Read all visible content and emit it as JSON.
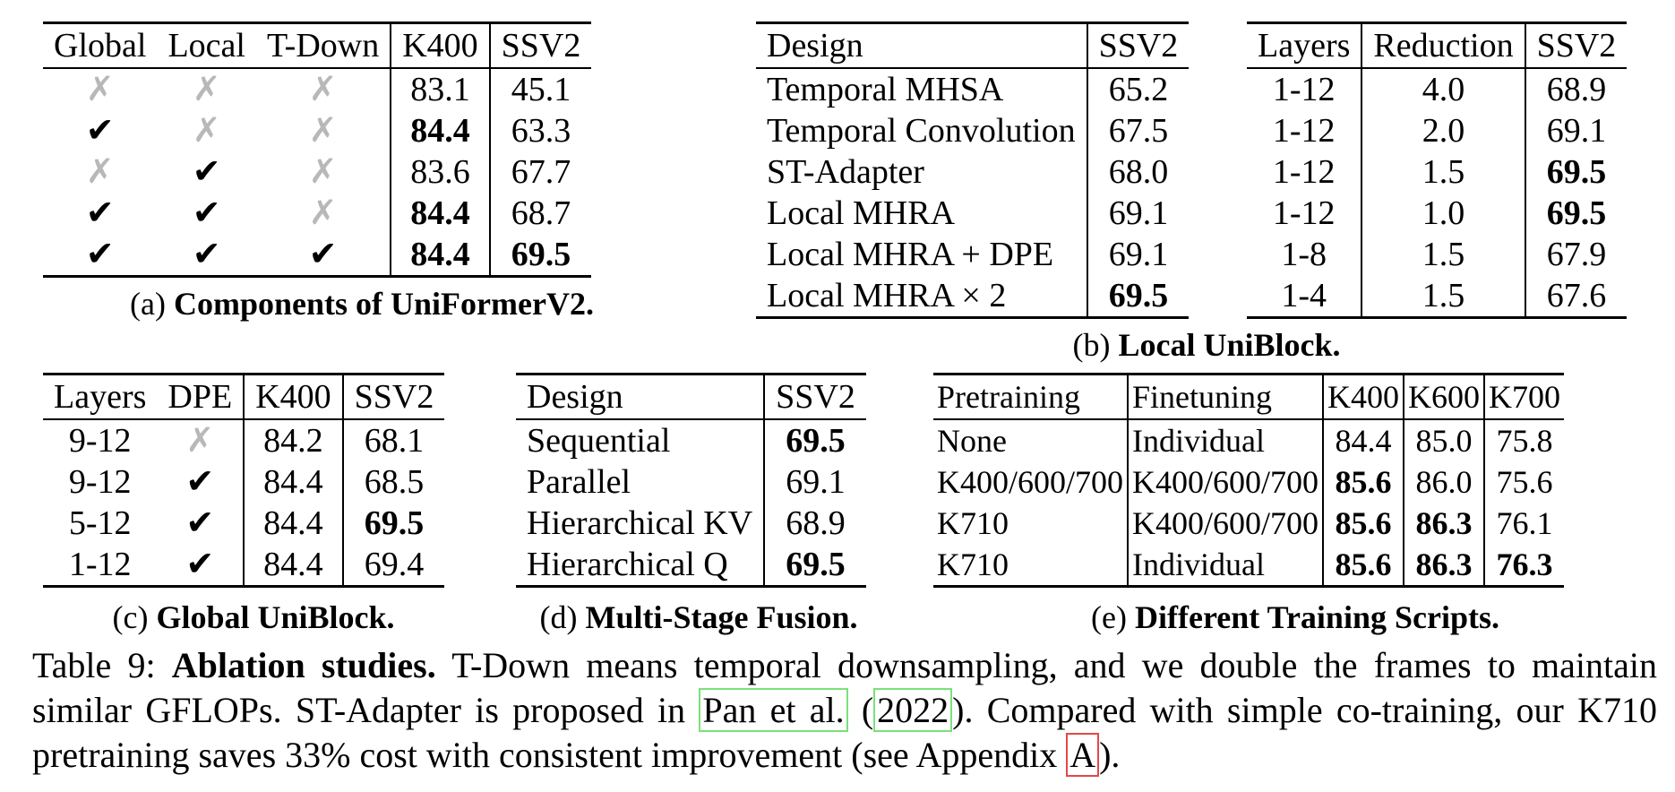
{
  "panel_a": {
    "headers": [
      "Global",
      "Local",
      "T-Down",
      "K400",
      "SSV2"
    ],
    "rows": [
      {
        "global": "✗",
        "local": "✗",
        "tdown": "✗",
        "k400": "83.1",
        "ssv2": "45.1"
      },
      {
        "global": "✔",
        "local": "✗",
        "tdown": "✗",
        "k400": "84.4",
        "ssv2": "63.3"
      },
      {
        "global": "✗",
        "local": "✔",
        "tdown": "✗",
        "k400": "83.6",
        "ssv2": "67.7"
      },
      {
        "global": "✔",
        "local": "✔",
        "tdown": "✗",
        "k400": "84.4",
        "ssv2": "68.7"
      },
      {
        "global": "✔",
        "local": "✔",
        "tdown": "✔",
        "k400": "84.4",
        "ssv2": "69.5"
      }
    ],
    "caption_prefix": "(a) ",
    "caption_bold": "Components of UniFormerV2."
  },
  "panel_b1": {
    "headers": [
      "Design",
      "SSV2"
    ],
    "rows": [
      {
        "design": "Temporal MHSA",
        "ssv2": "65.2"
      },
      {
        "design": "Temporal Convolution",
        "ssv2": "67.5"
      },
      {
        "design": "ST-Adapter",
        "ssv2": "68.0"
      },
      {
        "design": "Local MHRA",
        "ssv2": "69.1"
      },
      {
        "design": "Local MHRA + DPE",
        "ssv2": "69.1"
      },
      {
        "design": "Local MHRA × 2",
        "ssv2": "69.5"
      }
    ]
  },
  "panel_b2": {
    "headers": [
      "Layers",
      "Reduction",
      "SSV2"
    ],
    "rows": [
      {
        "layers": "1-12",
        "reduction": "4.0",
        "ssv2": "68.9"
      },
      {
        "layers": "1-12",
        "reduction": "2.0",
        "ssv2": "69.1"
      },
      {
        "layers": "1-12",
        "reduction": "1.5",
        "ssv2": "69.5"
      },
      {
        "layers": "1-12",
        "reduction": "1.0",
        "ssv2": "69.5"
      },
      {
        "layers": "1-8",
        "reduction": "1.5",
        "ssv2": "67.9"
      },
      {
        "layers": "1-4",
        "reduction": "1.5",
        "ssv2": "67.6"
      }
    ]
  },
  "panel_b_caption_prefix": "(b) ",
  "panel_b_caption_bold": "Local UniBlock.",
  "panel_c": {
    "headers": [
      "Layers",
      "DPE",
      "K400",
      "SSV2"
    ],
    "rows": [
      {
        "layers": "9-12",
        "dpe": "✗",
        "k400": "84.2",
        "ssv2": "68.1"
      },
      {
        "layers": "9-12",
        "dpe": "✔",
        "k400": "84.4",
        "ssv2": "68.5"
      },
      {
        "layers": "5-12",
        "dpe": "✔",
        "k400": "84.4",
        "ssv2": "69.5"
      },
      {
        "layers": "1-12",
        "dpe": "✔",
        "k400": "84.4",
        "ssv2": "69.4"
      }
    ],
    "caption_prefix": "(c) ",
    "caption_bold": "Global UniBlock."
  },
  "panel_d": {
    "headers": [
      "Design",
      "SSV2"
    ],
    "rows": [
      {
        "design": "Sequential",
        "ssv2": "69.5"
      },
      {
        "design": "Parallel",
        "ssv2": "69.1"
      },
      {
        "design": "Hierarchical KV",
        "ssv2": "68.9"
      },
      {
        "design": "Hierarchical Q",
        "ssv2": "69.5"
      }
    ],
    "caption_prefix": "(d) ",
    "caption_bold": "Multi-Stage Fusion."
  },
  "panel_e": {
    "headers": [
      "Pretraining",
      "Finetuning",
      "K400",
      "K600",
      "K700"
    ],
    "rows": [
      {
        "pre": "None",
        "fine": "Individual",
        "k400": "84.4",
        "k600": "85.0",
        "k700": "75.8"
      },
      {
        "pre": "K400/600/700",
        "fine": "K400/600/700",
        "k400": "85.6",
        "k600": "86.0",
        "k700": "75.6"
      },
      {
        "pre": "K710",
        "fine": "K400/600/700",
        "k400": "85.6",
        "k600": "86.3",
        "k700": "76.1"
      },
      {
        "pre": "K710",
        "fine": "Individual",
        "k400": "85.6",
        "k600": "86.3",
        "k700": "76.3"
      }
    ],
    "caption_prefix": "(e) ",
    "caption_bold": "Different Training Scripts."
  },
  "caption": {
    "label": "Table 9: ",
    "bold": "Ablation studies.",
    "text1": " T-Down means temporal downsampling, and we double the frames to maintain similar GFLOPs.  ST-Adapter is proposed in ",
    "cite_author": "Pan et al.",
    "cite_open": " (",
    "cite_year": "2022",
    "text2": ").  Compared with simple co-training, our K710 pretraining saves 33% cost with consistent improvement (see Appendix ",
    "appendix": "A",
    "text3": ")."
  }
}
